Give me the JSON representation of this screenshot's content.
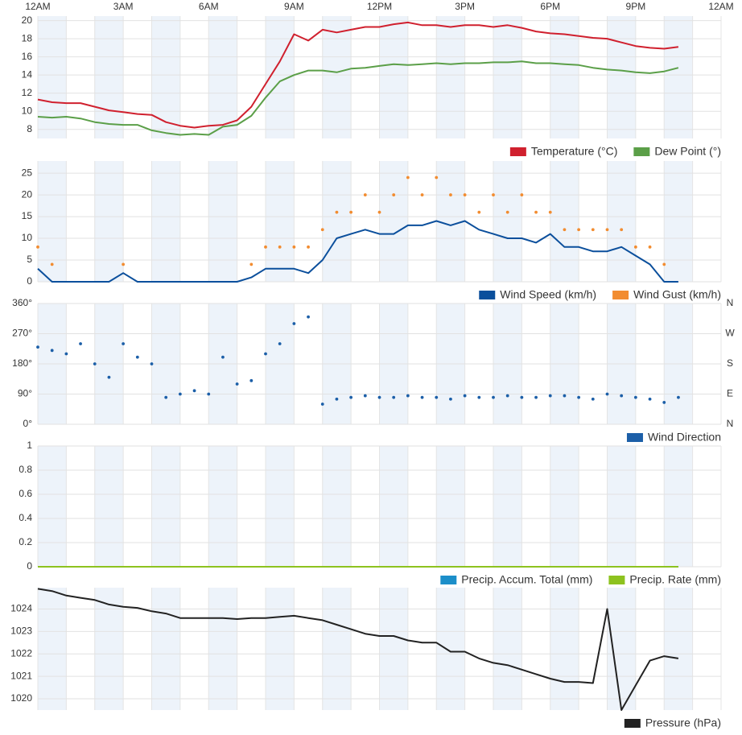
{
  "chart_data": [
    {
      "type": "line",
      "xlim": [
        0,
        24
      ],
      "xticks": [
        {
          "value": 0,
          "label": "12AM"
        },
        {
          "value": 3,
          "label": "3AM"
        },
        {
          "value": 6,
          "label": "6AM"
        },
        {
          "value": 9,
          "label": "9AM"
        },
        {
          "value": 12,
          "label": "12PM"
        },
        {
          "value": 15,
          "label": "3PM"
        },
        {
          "value": 18,
          "label": "6PM"
        },
        {
          "value": 21,
          "label": "9PM"
        },
        {
          "value": 24,
          "label": "12AM"
        }
      ],
      "x": [
        0,
        0.5,
        1,
        1.5,
        2,
        2.5,
        3,
        3.5,
        4,
        4.5,
        5,
        5.5,
        6,
        6.5,
        7,
        7.5,
        8,
        8.5,
        9,
        9.5,
        10,
        10.5,
        11,
        11.5,
        12,
        12.5,
        13,
        13.5,
        14,
        14.5,
        15,
        15.5,
        16,
        16.5,
        17,
        17.5,
        18,
        18.5,
        19,
        19.5,
        20,
        20.5,
        21,
        21.5,
        22,
        22.5
      ],
      "ylim": [
        7,
        20.5
      ],
      "yticks": [
        8,
        10,
        12,
        14,
        16,
        18,
        20
      ],
      "series": [
        {
          "name": "Temperature (°C)",
          "color": "#d0202e",
          "values": [
            11.3,
            11.0,
            10.9,
            10.9,
            10.5,
            10.1,
            9.9,
            9.7,
            9.6,
            8.8,
            8.4,
            8.2,
            8.4,
            8.5,
            9.0,
            10.5,
            13.0,
            15.5,
            18.5,
            17.8,
            19.0,
            18.7,
            19.0,
            19.3,
            19.3,
            19.6,
            19.8,
            19.5,
            19.5,
            19.3,
            19.5,
            19.5,
            19.3,
            19.5,
            19.2,
            18.8,
            18.6,
            18.5,
            18.3,
            18.1,
            18.0,
            17.6,
            17.2,
            17.0,
            16.9,
            17.1
          ]
        },
        {
          "name": "Dew Point (°)",
          "color": "#5b9f48",
          "values": [
            9.4,
            9.3,
            9.4,
            9.2,
            8.8,
            8.6,
            8.5,
            8.5,
            7.9,
            7.6,
            7.4,
            7.5,
            7.4,
            8.3,
            8.5,
            9.5,
            11.5,
            13.3,
            14.0,
            14.5,
            14.5,
            14.3,
            14.7,
            14.8,
            15.0,
            15.2,
            15.1,
            15.2,
            15.3,
            15.2,
            15.3,
            15.3,
            15.4,
            15.4,
            15.5,
            15.3,
            15.3,
            15.2,
            15.1,
            14.8,
            14.6,
            14.5,
            14.3,
            14.2,
            14.4,
            14.8
          ]
        }
      ]
    },
    {
      "type": "line",
      "xlim": [
        0,
        24
      ],
      "x": [
        0,
        0.5,
        1,
        1.5,
        2,
        2.5,
        3,
        3.5,
        4,
        4.5,
        5,
        5.5,
        6,
        6.5,
        7,
        7.5,
        8,
        8.5,
        9,
        9.5,
        10,
        10.5,
        11,
        11.5,
        12,
        12.5,
        13,
        13.5,
        14,
        14.5,
        15,
        15.5,
        16,
        16.5,
        17,
        17.5,
        18,
        18.5,
        19,
        19.5,
        20,
        20.5,
        21,
        21.5,
        22,
        22.5
      ],
      "ylim": [
        0,
        27.8
      ],
      "yticks": [
        0,
        5,
        10,
        15,
        20,
        25
      ],
      "series": [
        {
          "name": "Wind Speed (km/h)",
          "color": "#0b4f9c",
          "values": [
            3,
            0,
            0,
            0,
            0,
            0,
            2,
            0,
            0,
            0,
            0,
            0,
            0,
            0,
            0,
            1,
            3,
            3,
            3,
            2,
            5,
            10,
            11,
            12,
            11,
            11,
            13,
            13,
            14,
            13,
            14,
            12,
            11,
            10,
            10,
            9,
            11,
            8,
            8,
            7,
            7,
            8,
            6,
            4,
            0,
            0
          ]
        },
        {
          "name": "Wind Gust (km/h)",
          "color": "#f28c30",
          "type": "scatter",
          "values": [
            8,
            4,
            null,
            null,
            null,
            null,
            4,
            null,
            null,
            null,
            null,
            null,
            null,
            null,
            null,
            4,
            8,
            8,
            8,
            8,
            12,
            16,
            16,
            20,
            16,
            20,
            24,
            20,
            24,
            20,
            20,
            16,
            20,
            16,
            20,
            16,
            16,
            12,
            12,
            12,
            12,
            12,
            8,
            8,
            4,
            null
          ]
        }
      ]
    },
    {
      "type": "scatter",
      "xlim": [
        0,
        24
      ],
      "x": [
        0,
        0.5,
        1,
        1.5,
        2,
        2.5,
        3,
        3.5,
        4,
        4.5,
        5,
        5.5,
        6,
        6.5,
        7,
        7.5,
        8,
        8.5,
        9,
        9.5,
        10,
        10.5,
        11,
        11.5,
        12,
        12.5,
        13,
        13.5,
        14,
        14.5,
        15,
        15.5,
        16,
        16.5,
        17,
        17.5,
        18,
        18.5,
        19,
        19.5,
        20,
        20.5,
        21,
        21.5,
        22,
        22.5
      ],
      "ylim": [
        0,
        360
      ],
      "yticks": [
        {
          "value": 0,
          "label": "0°"
        },
        {
          "value": 90,
          "label": "90°"
        },
        {
          "value": 180,
          "label": "180°"
        },
        {
          "value": 270,
          "label": "270°"
        },
        {
          "value": 360,
          "label": "360°"
        }
      ],
      "y2lim": [
        0,
        360
      ],
      "y2ticks": [
        {
          "value": 0,
          "label": "N"
        },
        {
          "value": 90,
          "label": "E"
        },
        {
          "value": 180,
          "label": "S"
        },
        {
          "value": 270,
          "label": "W"
        },
        {
          "value": 360,
          "label": "N"
        }
      ],
      "series": [
        {
          "name": "Wind Direction",
          "color": "#1c5fa8",
          "values": [
            230,
            220,
            210,
            240,
            180,
            140,
            240,
            200,
            180,
            80,
            90,
            100,
            90,
            200,
            120,
            130,
            210,
            240,
            300,
            320,
            60,
            75,
            80,
            85,
            80,
            80,
            85,
            80,
            80,
            75,
            85,
            80,
            80,
            85,
            80,
            80,
            85,
            85,
            80,
            75,
            90,
            85,
            80,
            75,
            65,
            80
          ]
        }
      ]
    },
    {
      "type": "line",
      "xlim": [
        0,
        24
      ],
      "x": [
        0,
        0.5,
        1,
        1.5,
        2,
        2.5,
        3,
        3.5,
        4,
        4.5,
        5,
        5.5,
        6,
        6.5,
        7,
        7.5,
        8,
        8.5,
        9,
        9.5,
        10,
        10.5,
        11,
        11.5,
        12,
        12.5,
        13,
        13.5,
        14,
        14.5,
        15,
        15.5,
        16,
        16.5,
        17,
        17.5,
        18,
        18.5,
        19,
        19.5,
        20,
        20.5,
        21,
        21.5,
        22,
        22.5
      ],
      "ylim": [
        0,
        1
      ],
      "yticks": [
        0,
        0.2,
        0.4,
        0.6,
        0.8,
        1
      ],
      "series": [
        {
          "name": "Precip. Accum. Total (mm)",
          "color": "#1b8ec9",
          "values": [
            0,
            0,
            0,
            0,
            0,
            0,
            0,
            0,
            0,
            0,
            0,
            0,
            0,
            0,
            0,
            0,
            0,
            0,
            0,
            0,
            0,
            0,
            0,
            0,
            0,
            0,
            0,
            0,
            0,
            0,
            0,
            0,
            0,
            0,
            0,
            0,
            0,
            0,
            0,
            0,
            0,
            0,
            0,
            0,
            0,
            0
          ]
        },
        {
          "name": "Precip. Rate (mm)",
          "color": "#8dc21f",
          "values": [
            0,
            0,
            0,
            0,
            0,
            0,
            0,
            0,
            0,
            0,
            0,
            0,
            0,
            0,
            0,
            0,
            0,
            0,
            0,
            0,
            0,
            0,
            0,
            0,
            0,
            0,
            0,
            0,
            0,
            0,
            0,
            0,
            0,
            0,
            0,
            0,
            0,
            0,
            0,
            0,
            0,
            0,
            0,
            0,
            0,
            0
          ]
        }
      ]
    },
    {
      "type": "line",
      "xlim": [
        0,
        24
      ],
      "x": [
        0,
        0.5,
        1,
        1.5,
        2,
        2.5,
        3,
        3.5,
        4,
        4.5,
        5,
        5.5,
        6,
        6.5,
        7,
        7.5,
        8,
        8.5,
        9,
        9.5,
        10,
        10.5,
        11,
        11.5,
        12,
        12.5,
        13,
        13.5,
        14,
        14.5,
        15,
        15.5,
        16,
        16.5,
        17,
        17.5,
        18,
        18.5,
        19,
        19.5,
        20,
        20.5,
        21,
        21.5,
        22,
        22.5
      ],
      "ylim": [
        1019.5,
        1024.95
      ],
      "yticks": [
        1020,
        1021,
        1022,
        1023,
        1024
      ],
      "series": [
        {
          "name": "Pressure (hPa)",
          "color": "#222222",
          "values": [
            1024.9,
            1024.8,
            1024.6,
            1024.5,
            1024.4,
            1024.2,
            1024.1,
            1024.05,
            1023.9,
            1023.8,
            1023.6,
            1023.6,
            1023.6,
            1023.6,
            1023.55,
            1023.6,
            1023.6,
            1023.65,
            1023.7,
            1023.6,
            1023.5,
            1023.3,
            1023.1,
            1022.9,
            1022.8,
            1022.8,
            1022.6,
            1022.5,
            1022.5,
            1022.1,
            1022.1,
            1021.8,
            1021.6,
            1021.5,
            1021.3,
            1021.1,
            1020.9,
            1020.75,
            1020.75,
            1020.7,
            1024.0,
            1019.5,
            1020.6,
            1021.7,
            1021.9,
            1021.8
          ]
        }
      ]
    }
  ]
}
